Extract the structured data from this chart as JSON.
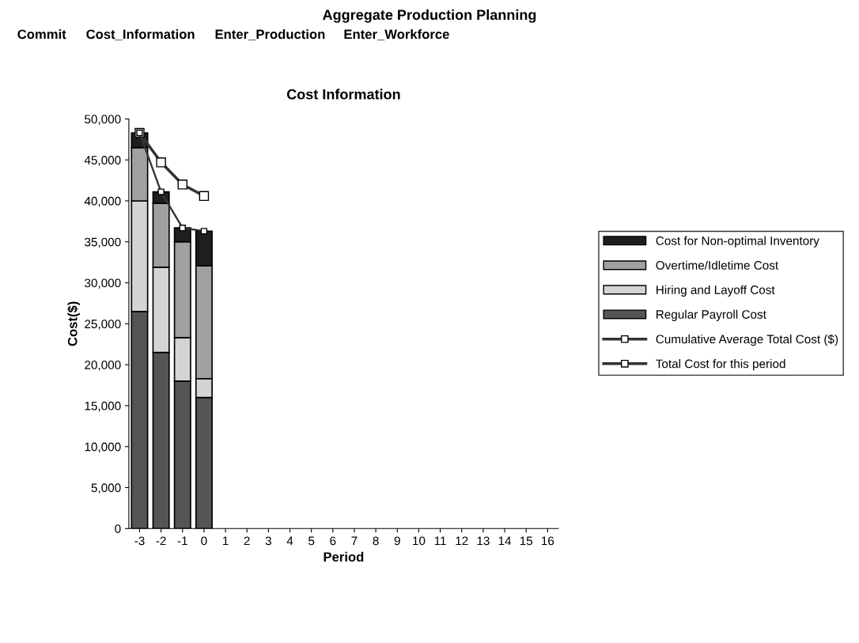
{
  "chart_data": {
    "type": "bar",
    "title": "Cost Information",
    "xlabel": "Period",
    "ylabel": "Cost($)",
    "annotations": [
      "Aggregate Production Planning",
      "Commit",
      "Cost_Information",
      "Enter_Production",
      "Enter_Workforce"
    ],
    "categories": [
      "-3",
      "-2",
      "-1",
      "0",
      "1",
      "2",
      "3",
      "4",
      "5",
      "6",
      "7",
      "8",
      "9",
      "10",
      "11",
      "12",
      "13",
      "14",
      "15",
      "16"
    ],
    "stacked": true,
    "series": [
      {
        "name": "Regular Payroll Cost",
        "color": "#555555",
        "values": [
          26500,
          21500,
          18000,
          16000,
          null,
          null,
          null,
          null,
          null,
          null,
          null,
          null,
          null,
          null,
          null,
          null,
          null,
          null,
          null,
          null
        ]
      },
      {
        "name": "Hiring and Layoff Cost",
        "color": "#d4d4d4",
        "values": [
          13500,
          10400,
          5300,
          2300,
          null,
          null,
          null,
          null,
          null,
          null,
          null,
          null,
          null,
          null,
          null,
          null,
          null,
          null,
          null,
          null
        ]
      },
      {
        "name": "Overtime/Idletime Cost",
        "color": "#a0a0a0",
        "values": [
          6500,
          7800,
          11700,
          13800,
          null,
          null,
          null,
          null,
          null,
          null,
          null,
          null,
          null,
          null,
          null,
          null,
          null,
          null,
          null,
          null
        ]
      },
      {
        "name": "Cost for Non-optimal Inventory",
        "color": "#1e1e1e",
        "values": [
          1800,
          1400,
          1700,
          4200,
          null,
          null,
          null,
          null,
          null,
          null,
          null,
          null,
          null,
          null,
          null,
          null,
          null,
          null,
          null,
          null
        ]
      },
      {
        "name": "Cumulative Average Total Cost ($)",
        "type": "line",
        "color": "#333333",
        "marker": "square",
        "values": [
          48300,
          44700,
          42000,
          40600,
          null,
          null,
          null,
          null,
          null,
          null,
          null,
          null,
          null,
          null,
          null,
          null,
          null,
          null,
          null,
          null
        ]
      },
      {
        "name": "Total Cost for this period",
        "type": "line",
        "color": "#333333",
        "marker": "square",
        "values": [
          48300,
          41100,
          36700,
          36300,
          null,
          null,
          null,
          null,
          null,
          null,
          null,
          null,
          null,
          null,
          null,
          null,
          null,
          null,
          null,
          null
        ]
      }
    ],
    "ylim": [
      0,
      50000
    ],
    "yticks": [
      0,
      {
        "value": 5000,
        "label": "5,000"
      },
      {
        "value": 10000,
        "label": "10,000"
      },
      {
        "value": 15000,
        "label": "15,000"
      },
      {
        "value": 20000,
        "label": "20,000"
      },
      {
        "value": 25000,
        "label": "25,000"
      },
      {
        "value": 30000,
        "label": "30,000"
      },
      {
        "value": 35000,
        "label": "35,000"
      },
      {
        "value": 40000,
        "label": "40,000"
      },
      {
        "value": 45000,
        "label": "45,000"
      },
      {
        "value": 50000,
        "label": "50,000"
      }
    ],
    "grid": false,
    "legend": "right"
  }
}
